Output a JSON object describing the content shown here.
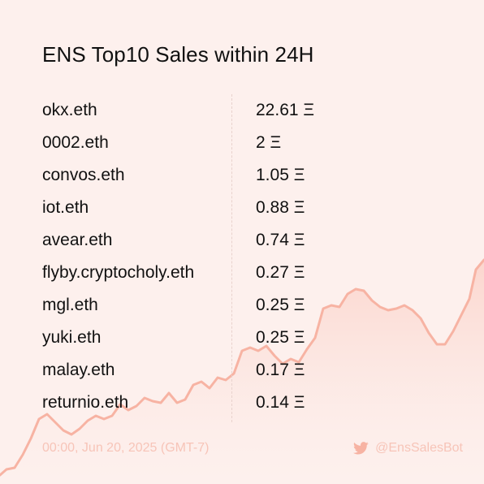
{
  "title": "ENS Top10 Sales within 24H",
  "sales": [
    {
      "name": "okx.eth",
      "price": "22.61 Ξ"
    },
    {
      "name": "0002.eth",
      "price": "2 Ξ"
    },
    {
      "name": "convos.eth",
      "price": "1.05 Ξ"
    },
    {
      "name": "iot.eth",
      "price": "0.88 Ξ"
    },
    {
      "name": "avear.eth",
      "price": "0.74 Ξ"
    },
    {
      "name": "flyby.cryptocholy.eth",
      "price": "0.27 Ξ"
    },
    {
      "name": "mgl.eth",
      "price": "0.25 Ξ"
    },
    {
      "name": "yuki.eth",
      "price": "0.25 Ξ"
    },
    {
      "name": "malay.eth",
      "price": "0.17 Ξ"
    },
    {
      "name": "returnio.eth",
      "price": "0.14 Ξ"
    }
  ],
  "footer": {
    "timestamp": "00:00, Jun 20, 2025 (GMT-7)",
    "handle": "@EnsSalesBot",
    "icon": "twitter-icon"
  },
  "colors": {
    "background": "#fdf0ed",
    "accent": "#f7b3a3",
    "footer_text": "#f7c4b8"
  }
}
